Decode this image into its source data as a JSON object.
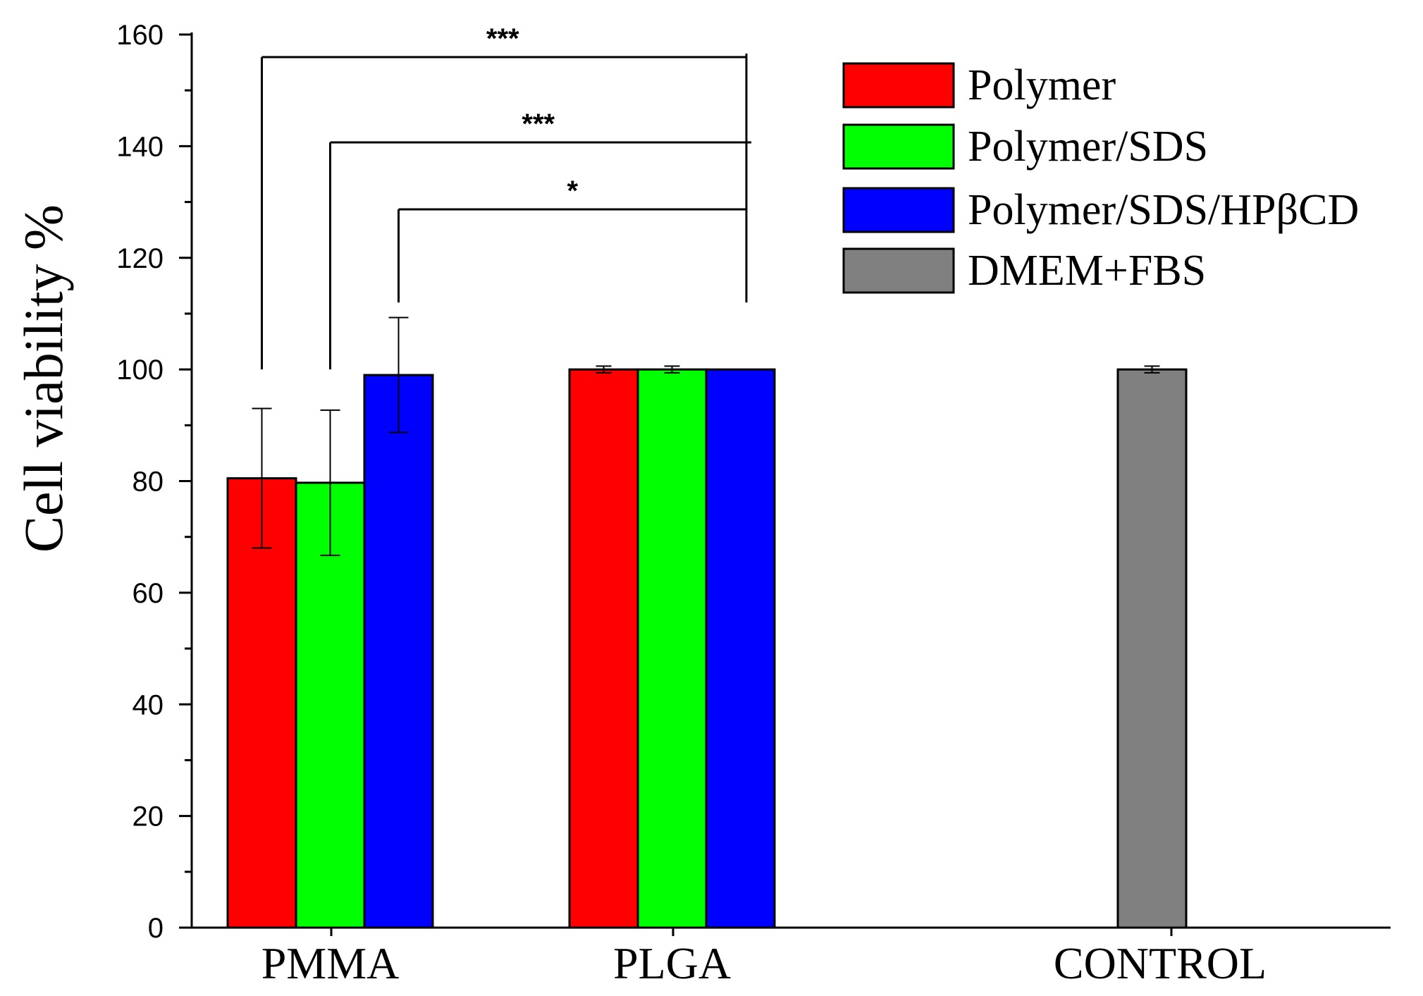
{
  "chart_data": {
    "type": "bar",
    "title": "",
    "xlabel": "",
    "ylabel": "Cell viability %",
    "ylim": [
      0,
      160
    ],
    "yticks": [
      0,
      20,
      40,
      60,
      80,
      100,
      120,
      140,
      160
    ],
    "categories": [
      "PMMA",
      "PLGA",
      "CONTROL"
    ],
    "series": [
      {
        "name": "Polymer",
        "color": "#ff0000",
        "values": [
          80.5,
          100,
          null
        ],
        "errors": [
          12.5,
          0.6,
          null
        ]
      },
      {
        "name": "Polymer/SDS",
        "color": "#00ff00",
        "values": [
          79.7,
          100,
          null
        ],
        "errors": [
          13.0,
          0.6,
          null
        ]
      },
      {
        "name": "Polymer/SDS/HPβCD",
        "color": "#0000ff",
        "values": [
          99.0,
          100,
          null
        ],
        "errors": [
          10.3,
          0,
          null
        ]
      },
      {
        "name": "DMEM+FBS",
        "color": "#808080",
        "values": [
          null,
          null,
          100
        ],
        "errors": [
          null,
          null,
          0.6
        ]
      }
    ],
    "legend_position": "top-right",
    "significance": [
      {
        "label": "***",
        "from_category": "PMMA",
        "from_series": "Polymer",
        "to_category": "PLGA"
      },
      {
        "label": "***",
        "from_category": "PMMA",
        "from_series": "Polymer/SDS",
        "to_category": "PLGA"
      },
      {
        "label": "*",
        "from_category": "PMMA",
        "from_series": "Polymer/SDS/HPβCD",
        "to_category": "PLGA"
      }
    ]
  }
}
